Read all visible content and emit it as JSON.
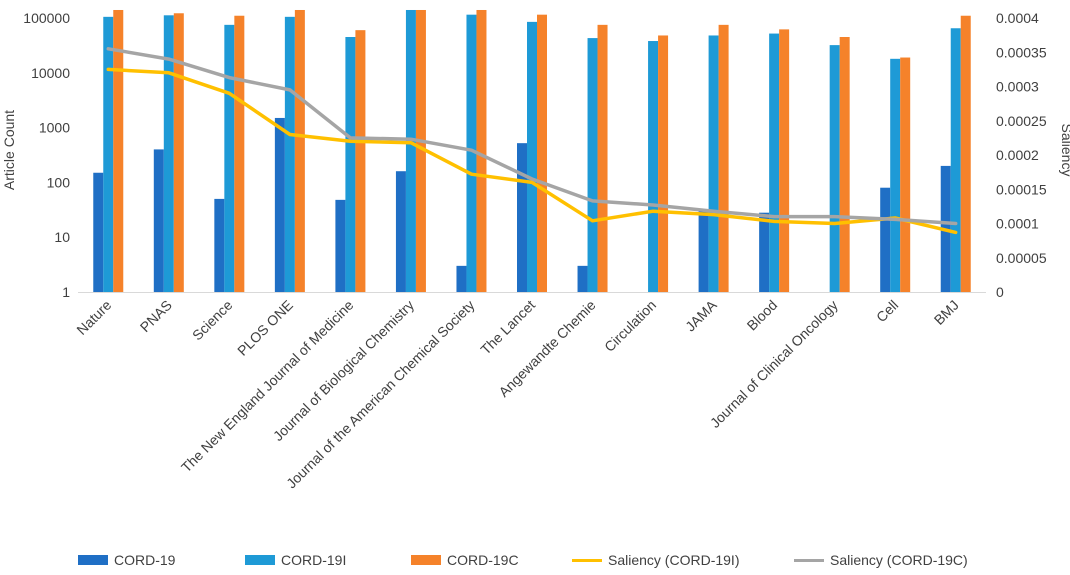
{
  "chart_data": {
    "type": "bar",
    "title": "",
    "xlabel": "",
    "ylabel": "Article Count",
    "y2label": "Saliency",
    "yscale": "log",
    "ylim": [
      1,
      100000
    ],
    "y2lim": [
      0,
      0.0004
    ],
    "yticks": [
      "1",
      "10",
      "100",
      "1000",
      "10000",
      "100000"
    ],
    "y2ticks": [
      "0",
      "0.00005",
      "0.0001",
      "0.00015",
      "0.0002",
      "0.00025",
      "0.0003",
      "0.00035",
      "0.0004"
    ],
    "grid": false,
    "legend_position": "bottom",
    "categories": [
      "Nature",
      "PNAS",
      "Science",
      "PLOS ONE",
      "The New England Journal of Medicine",
      "Journal of Biological Chemistry",
      "Journal of the American Chemical Society",
      "The Lancet",
      "Angewandte Chemie",
      "Circulation",
      "JAMA",
      "Blood",
      "Journal of Clinical Oncology",
      "Cell",
      "BMJ"
    ],
    "series": [
      {
        "name": "CORD-19",
        "type": "bar",
        "axis": "left",
        "color": "#1f6fc5",
        "values": [
          150,
          400,
          50,
          1500,
          48,
          160,
          3,
          520,
          3,
          1,
          30,
          28,
          1,
          80,
          200
        ]
      },
      {
        "name": "CORD-19I",
        "type": "bar",
        "axis": "left",
        "color": "#1e9ad6",
        "values": [
          105000,
          112000,
          75000,
          105000,
          45000,
          140000,
          115000,
          85000,
          43000,
          38000,
          48000,
          52000,
          32000,
          18000,
          65000
        ]
      },
      {
        "name": "CORD-19C",
        "type": "bar",
        "axis": "left",
        "color": "#f5822a",
        "values": [
          140000,
          122000,
          110000,
          140000,
          60000,
          140000,
          140000,
          115000,
          75000,
          48000,
          75000,
          62000,
          45000,
          19000,
          110000
        ]
      },
      {
        "name": "Saliency (CORD-19I)",
        "type": "line",
        "axis": "right",
        "color": "#ffc000",
        "values": [
          0.000325,
          0.00032,
          0.00029,
          0.00023,
          0.00022,
          0.000218,
          0.000172,
          0.00016,
          0.000104,
          0.000118,
          0.000113,
          0.000103,
          0.0001,
          0.000108,
          8.7e-05
        ]
      },
      {
        "name": "Saliency (CORD-19C)",
        "type": "line",
        "axis": "right",
        "color": "#a5a5a5",
        "values": [
          0.000355,
          0.00034,
          0.000313,
          0.000295,
          0.000225,
          0.000223,
          0.000207,
          0.000165,
          0.000133,
          0.000127,
          0.000118,
          0.00011,
          0.00011,
          0.000106,
          0.0001
        ]
      }
    ]
  }
}
